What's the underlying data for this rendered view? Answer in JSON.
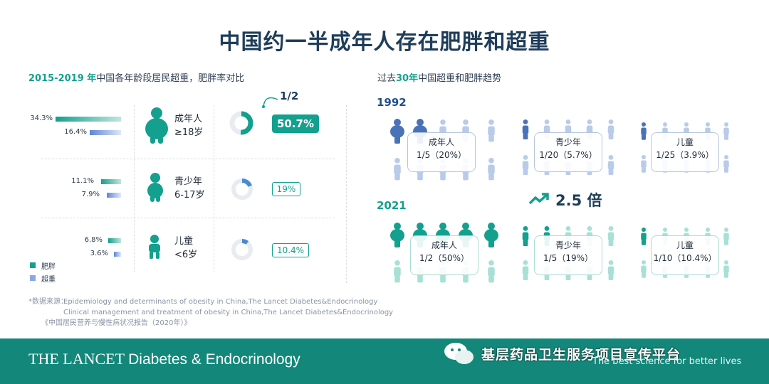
{
  "title": "中国约一半成年人存在肥胖和超重",
  "left": {
    "subtitle_year": "2015-2019 年",
    "subtitle_rest": "中国各年龄段居民超重，肥胖率对比",
    "groups": [
      {
        "name": "成年人",
        "age": "≥18岁",
        "obesity_pct": "34.3%",
        "overweight_pct": "16.4%",
        "obesity": 34.3,
        "overweight": 16.4,
        "rate_label": "50.7%",
        "rate": 50.7,
        "note": "1/2"
      },
      {
        "name": "青少年",
        "age": "6-17岁",
        "obesity_pct": "11.1%",
        "overweight_pct": "7.9%",
        "obesity": 11.1,
        "overweight": 7.9,
        "rate_label": "19%",
        "rate": 19
      },
      {
        "name": "儿童",
        "age": "<6岁",
        "obesity_pct": "6.8%",
        "overweight_pct": "3.6%",
        "obesity": 6.8,
        "overweight": 3.6,
        "rate_label": "10.4%",
        "rate": 10.4
      }
    ],
    "legend": {
      "obesity": "肥胖",
      "overweight": "超重"
    }
  },
  "right": {
    "subtitle_pre": "过去",
    "subtitle_hl": "30年",
    "subtitle_post": "中国超重和肥胖趋势",
    "year1": "1992",
    "year2": "2021",
    "growth": "2.5 倍",
    "row1": [
      {
        "name": "成年人",
        "ratio": "1/5（20%）"
      },
      {
        "name": "青少年",
        "ratio": "1/20（5.7%）"
      },
      {
        "name": "儿童",
        "ratio": "1/25（3.9%）"
      }
    ],
    "row2": [
      {
        "name": "成年人",
        "ratio": "1/2（50%）"
      },
      {
        "name": "青少年",
        "ratio": "1/5（19%）"
      },
      {
        "name": "儿童",
        "ratio": "1/10（10.4%）"
      }
    ]
  },
  "sources": {
    "label": "*数据来源：",
    "line1": "Epidemiology and determinants of obesity in China,The Lancet Diabetes&Endocrinology",
    "line2": "Clinical management and treatment of obesity in China,The Lancet Diabetes&Endocrinology",
    "line3": "《中国居民营养与慢性病状况报告（2020年）》"
  },
  "footer": {
    "journal": "THE LANCET",
    "journal_sub": "Diabetes & Endocrinology",
    "tagline": "The best science for better lives",
    "watermark": "基层药品卫生服务项目宣传平台"
  },
  "colors": {
    "teal": "#13a08e",
    "blue": "#5d86d6",
    "navy": "#1e3d5a",
    "light_blue": "#b9cbe9",
    "light_teal": "#a9e0d6"
  }
}
